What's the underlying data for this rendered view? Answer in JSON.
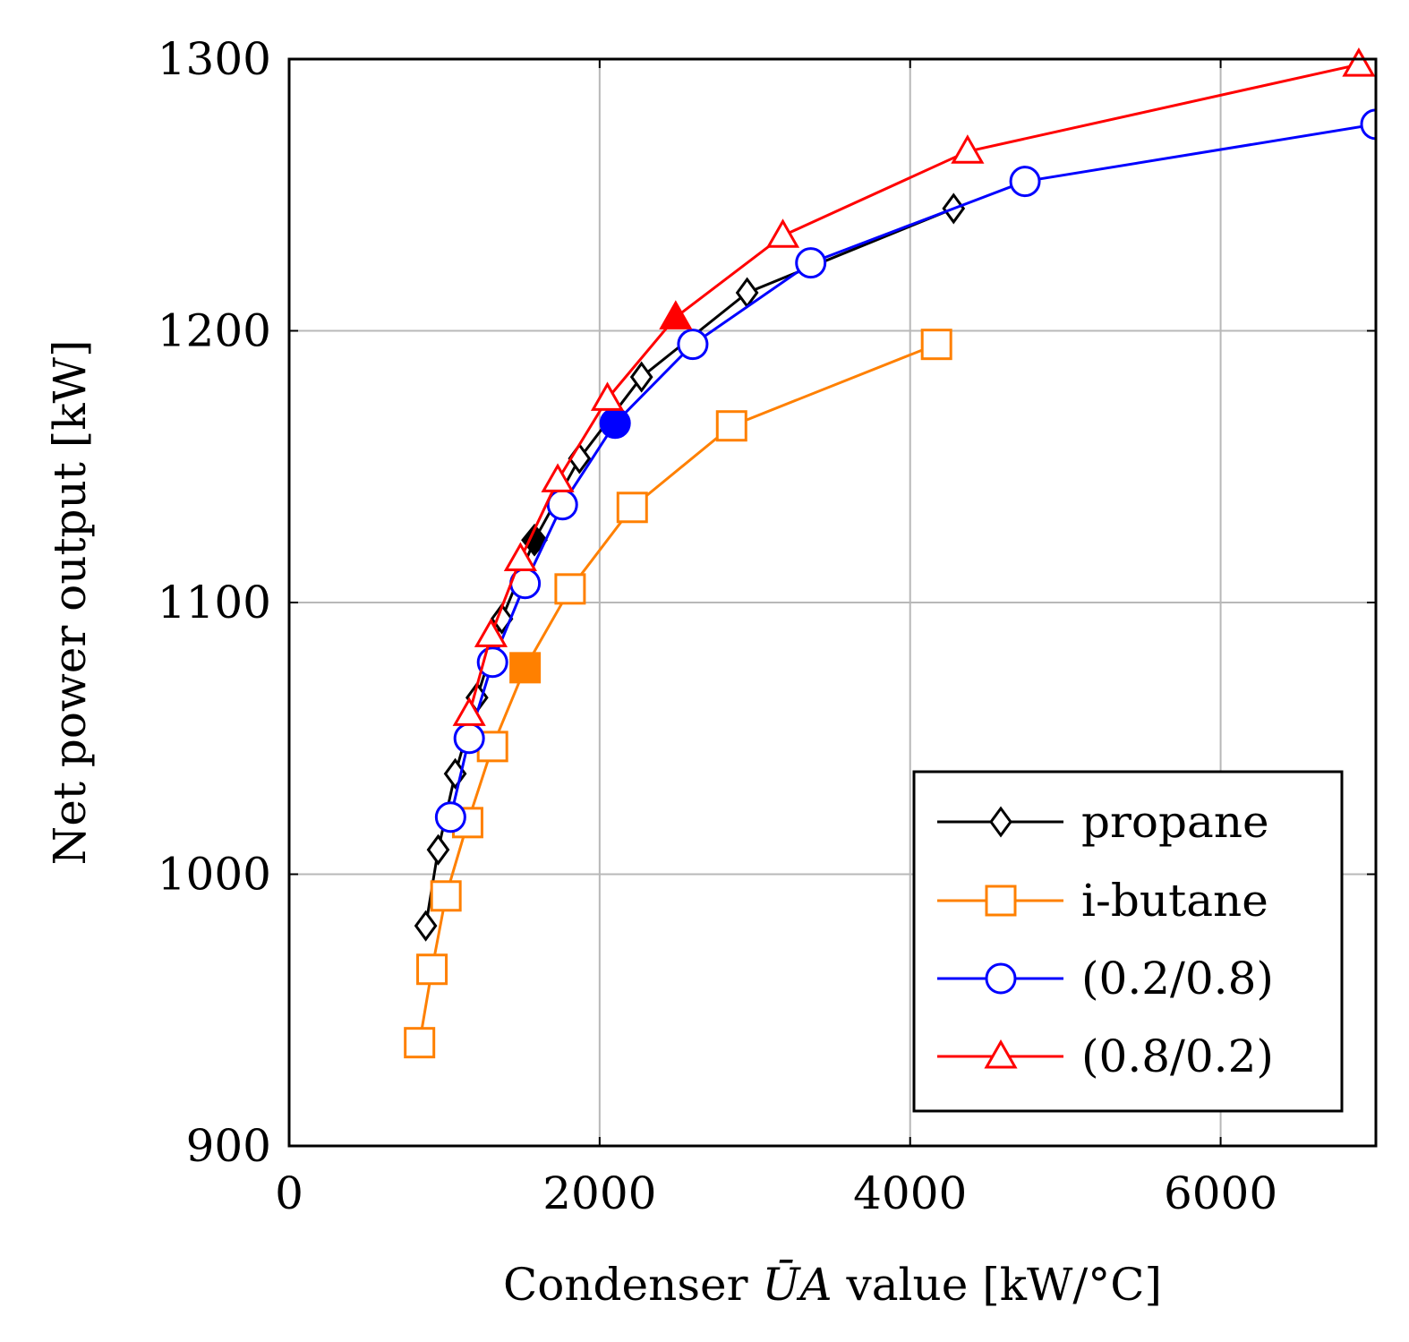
{
  "chart_data": {
    "type": "line",
    "title": "",
    "xlabel_parts": [
      "Condenser ",
      "Ū",
      "A",
      " value [kW/°C]"
    ],
    "ylabel": "Net power output [kW]",
    "xlim": [
      0,
      7000
    ],
    "ylim": [
      900,
      1300
    ],
    "xticks": [
      0,
      2000,
      4000,
      6000
    ],
    "yticks": [
      900,
      1000,
      1100,
      1200,
      1300
    ],
    "grid": true,
    "legend_position": "bottom-right",
    "series": [
      {
        "name": "propane",
        "color": "#000000",
        "marker": "diamond",
        "points": [
          [
            880,
            981
          ],
          [
            960,
            1009
          ],
          [
            1070,
            1037
          ],
          [
            1210,
            1065
          ],
          [
            1370,
            1094
          ],
          [
            1580,
            1123
          ],
          [
            1870,
            1153
          ],
          [
            2270,
            1183
          ],
          [
            2950,
            1214
          ],
          [
            4280,
            1245
          ]
        ],
        "highlight_index": 5
      },
      {
        "name": "i-butane",
        "color": "#ff8000",
        "marker": "square",
        "points": [
          [
            840,
            938
          ],
          [
            920,
            965
          ],
          [
            1010,
            992
          ],
          [
            1150,
            1019
          ],
          [
            1310,
            1047
          ],
          [
            1520,
            1076
          ],
          [
            1810,
            1105
          ],
          [
            2210,
            1135
          ],
          [
            2850,
            1165
          ],
          [
            4170,
            1195
          ]
        ],
        "highlight_index": 5
      },
      {
        "name": "(0.2/0.8)",
        "color": "#0000ff",
        "marker": "circle",
        "points": [
          [
            1040,
            1021
          ],
          [
            1160,
            1050
          ],
          [
            1310,
            1078
          ],
          [
            1520,
            1107
          ],
          [
            1760,
            1136
          ],
          [
            2100,
            1166
          ],
          [
            2600,
            1195
          ],
          [
            3360,
            1225
          ],
          [
            4740,
            1255
          ],
          [
            7000,
            1276
          ]
        ],
        "highlight_index": 5
      },
      {
        "name": "(0.8/0.2)",
        "color": "#ff0000",
        "marker": "triangle",
        "points": [
          [
            1160,
            1059
          ],
          [
            1300,
            1088
          ],
          [
            1490,
            1116
          ],
          [
            1730,
            1145
          ],
          [
            2050,
            1175
          ],
          [
            2490,
            1205
          ],
          [
            3180,
            1235
          ],
          [
            4370,
            1266
          ],
          [
            6890,
            1298
          ]
        ],
        "highlight_index": 5
      }
    ]
  }
}
